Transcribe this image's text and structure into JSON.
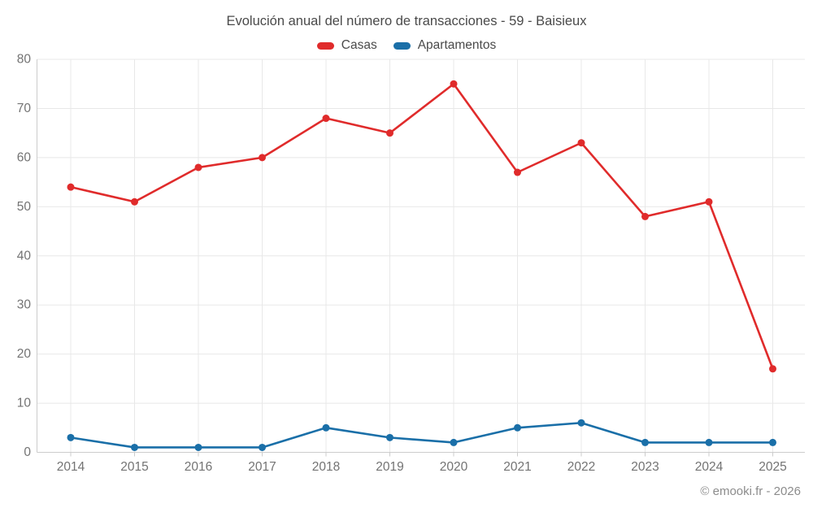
{
  "page": {
    "footer": "© emooki.fr - 2026"
  },
  "chart_data": {
    "type": "line",
    "title": "Evolución anual del número de transacciones - 59 - Baisieux",
    "categories": [
      "2014",
      "2015",
      "2016",
      "2017",
      "2018",
      "2019",
      "2020",
      "2021",
      "2022",
      "2023",
      "2024",
      "2025"
    ],
    "series": [
      {
        "name": "Casas",
        "color": "#e02b2b",
        "values": [
          54,
          51,
          58,
          60,
          68,
          65,
          75,
          57,
          63,
          48,
          51,
          17
        ]
      },
      {
        "name": "Apartamentos",
        "color": "#1a6fa8",
        "values": [
          3,
          1,
          1,
          1,
          5,
          3,
          2,
          5,
          6,
          2,
          2,
          2
        ]
      }
    ],
    "xlabel": "",
    "ylabel": "",
    "ylim": [
      0,
      80
    ],
    "ytick_step": 10,
    "grid": true,
    "legend_position": "top"
  },
  "style": {
    "grid_color": "#e8e8e8",
    "axis_color": "#cccccc",
    "tick_label_color": "#737373",
    "title_color": "#4a4a4a"
  }
}
